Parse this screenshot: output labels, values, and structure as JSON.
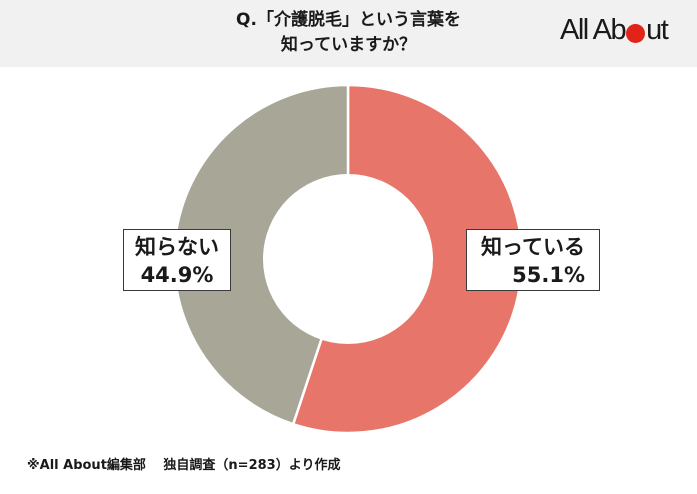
{
  "header": {
    "title_line1": "Q.「介護脱毛」という言葉を",
    "title_line2": "知っていますか？",
    "logo_text_before": "All Ab",
    "logo_text_after": "ut"
  },
  "chart_data": {
    "type": "pie",
    "subtype": "donut",
    "title": "Q.「介護脱毛」という言葉を知っていますか？",
    "categories": [
      "知っている",
      "知らない"
    ],
    "values": [
      55.1,
      44.9
    ],
    "unit": "%",
    "colors": [
      "#e8756a",
      "#a7a697"
    ],
    "start_angle_deg": 0,
    "direction": "clockwise",
    "labels": [
      {
        "name": "知っている",
        "value_label": "55.1%"
      },
      {
        "name": "知らない",
        "value_label": "44.9%"
      }
    ],
    "legend": "none (inline boxed labels)",
    "n": 283
  },
  "labels": {
    "yes_name": "知っている",
    "yes_pct": "55.1%",
    "no_name": "知らない",
    "no_pct": "44.9%"
  },
  "footnote": "※All About編集部　 独自調査（n=283）より作成",
  "colors": {
    "header_bg": "#f1f1f1",
    "yes": "#e8756a",
    "no": "#a7a697",
    "logo_dot": "#e2231a"
  }
}
